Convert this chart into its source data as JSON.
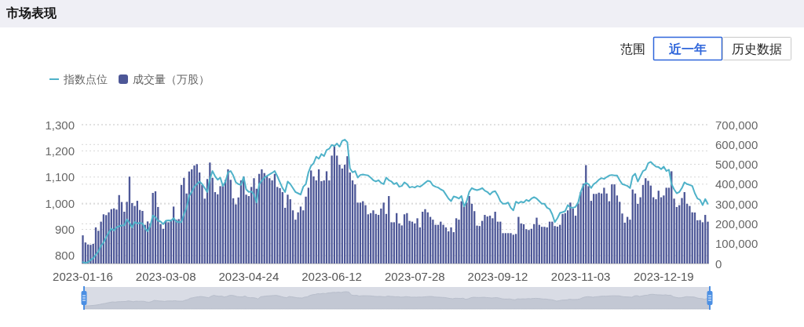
{
  "chart_data": {
    "type": "bar",
    "title": "市场表现",
    "annotations": [
      "范围",
      "近一年",
      "历史数据"
    ],
    "categories": [
      "2023-01-16",
      null,
      null,
      null,
      null,
      null,
      null,
      null,
      null,
      null,
      null,
      null,
      null,
      null,
      null,
      null,
      null,
      null,
      null,
      null,
      null,
      null,
      null,
      null,
      null,
      null,
      null,
      null,
      null,
      null,
      null,
      null,
      "2023-03-08",
      null,
      null,
      null,
      null,
      null,
      null,
      null,
      null,
      null,
      null,
      null,
      null,
      null,
      null,
      null,
      null,
      null,
      null,
      null,
      null,
      null,
      null,
      null,
      null,
      null,
      null,
      null,
      null,
      null,
      null,
      null,
      "2023-04-24",
      null,
      null,
      null,
      null,
      null,
      null,
      null,
      null,
      null,
      null,
      null,
      null,
      null,
      null,
      null,
      null,
      null,
      null,
      null,
      null,
      null,
      null,
      null,
      null,
      null,
      null,
      null,
      null,
      null,
      null,
      null,
      "2023-06-12",
      null,
      null,
      null,
      null,
      null,
      null,
      null,
      null,
      null,
      null,
      null,
      null,
      null,
      null,
      null,
      null,
      null,
      null,
      null,
      null,
      null,
      null,
      null,
      null,
      null,
      null,
      null,
      null,
      null,
      null,
      null,
      "2023-07-28",
      null,
      null,
      null,
      null,
      null,
      null,
      null,
      null,
      null,
      null,
      null,
      null,
      null,
      null,
      null,
      null,
      null,
      null,
      null,
      null,
      null,
      null,
      null,
      null,
      null,
      null,
      null,
      null,
      null,
      null,
      null,
      "2023-09-12",
      null,
      null,
      null,
      null,
      null,
      null,
      null,
      null,
      null,
      null,
      null,
      null,
      null,
      null,
      null,
      null,
      null,
      null,
      null,
      null,
      null,
      null,
      null,
      null,
      null,
      null,
      null,
      null,
      null,
      null,
      null,
      "2023-11-03",
      null,
      null,
      null,
      null,
      null,
      null,
      null,
      null,
      null,
      null,
      null,
      null,
      null,
      null,
      null,
      null,
      null,
      null,
      null,
      null,
      null,
      null,
      null,
      null,
      null,
      null,
      null,
      null,
      null,
      null,
      null,
      "2023-12-19",
      null,
      null,
      null,
      null,
      null,
      null,
      null,
      null,
      null,
      null,
      null,
      null,
      null,
      null,
      null,
      null,
      null
    ],
    "series": [
      {
        "name": "指数点位",
        "type": "line",
        "color": "#4fb2c9",
        "values": [
          775,
          772,
          775,
          783,
          790,
          803,
          816,
          838,
          850,
          870,
          888,
          903,
          896,
          908,
          912,
          915,
          916,
          938,
          926,
          908,
          928,
          923,
          925,
          923,
          903,
          893,
          913,
          953,
          946,
          933,
          930,
          920,
          933,
          935,
          933,
          943,
          930,
          928,
          928,
          958,
          983,
          1028,
          1043,
          1063,
          1073,
          1083,
          1073,
          1058,
          1043,
          1093,
          1123,
          1103,
          1090,
          1098,
          1066,
          1083,
          1118,
          1123,
          1106,
          1080,
          1073,
          1070,
          1100,
          1053,
          1043,
          1045,
          1033,
          1003,
          1073,
          1086,
          1098,
          1104,
          1110,
          1116,
          1123,
          1103,
          1080,
          1058,
          1043,
          1083,
          1073,
          1058,
          1043,
          1038,
          1033,
          1063,
          1073,
          1118,
          1143,
          1153,
          1178,
          1170,
          1188,
          1180,
          1203,
          1208,
          1223,
          1218,
          1228,
          1216,
          1238,
          1243,
          1233,
          1133,
          1118,
          1123,
          1098,
          1108,
          1110,
          1108,
          1106,
          1098,
          1088,
          1083,
          1088,
          1078,
          1073,
          1098,
          1088,
          1083,
          1073,
          1078,
          1063,
          1066,
          1080,
          1073,
          1060,
          1063,
          1060,
          1066,
          1063,
          1070,
          1078,
          1086,
          1083,
          1068,
          1063,
          1060,
          1053,
          1048,
          1033,
          1018,
          1008,
          1026,
          1023,
          1018,
          1028,
          988,
          1008,
          1043,
          1058,
          1053,
          1050,
          1053,
          1058,
          1048,
          1043,
          1033,
          1043,
          1046,
          1030,
          1008,
          998,
          998,
          1003,
          983,
          973,
          1006,
          1000,
          1006,
          1003,
          1013,
          1008,
          1018,
          1023,
          1018,
          1008,
          998,
          998,
          983,
          978,
          958,
          928,
          943,
          963,
          966,
          970,
          993,
          983,
          983,
          986,
          1003,
          1043,
          1068,
          1078,
          1073,
          1058,
          1073,
          1080,
          1090,
          1096,
          1093,
          1100,
          1106,
          1108,
          1106,
          1106,
          1088,
          1073,
          1070,
          1066,
          1058,
          1103,
          1113,
          1083,
          1103,
          1123,
          1128,
          1153,
          1158,
          1148,
          1140,
          1138,
          1130,
          1140,
          1123,
          1128,
          1073,
          1053,
          1038,
          1043,
          1058,
          1080,
          1073,
          1070,
          1066,
          1038,
          1018,
          1013,
          993,
          1016,
          998
        ]
      },
      {
        "name": "成交量（万股）",
        "axis": "y2",
        "color": "#4d5797",
        "values": [
          142000,
          106000,
          96000,
          94000,
          99000,
          182000,
          165000,
          211000,
          248000,
          244000,
          258000,
          274000,
          278000,
          272000,
          345000,
          310000,
          261000,
          311000,
          438000,
          305000,
          290000,
          316000,
          270000,
          265000,
          195000,
          212000,
          202000,
          356000,
          364000,
          285000,
          198000,
          175000,
          215000,
          208000,
          221000,
          287000,
          221000,
          224000,
          396000,
          432000,
          353000,
          464000,
          475000,
          494000,
          501000,
          459000,
          396000,
          327000,
          426000,
          509000,
          432000,
          360000,
          349000,
          390000,
          396000,
          422000,
          475000,
          422000,
          329000,
          298000,
          333000,
          419000,
          439000,
          347000,
          340000,
          386000,
          430000,
          377000,
          452000,
          475000,
          456000,
          439000,
          430000,
          419000,
          452000,
          386000,
          380000,
          360000,
          281000,
          347000,
          324000,
          268000,
          221000,
          258000,
          287000,
          268000,
          337000,
          382000,
          469000,
          439000,
          419000,
          475000,
          415000,
          419000,
          465000,
          419000,
          544000,
          591000,
          544000,
          498000,
          479000,
          498000,
          541000,
          459000,
          419000,
          399000,
          307000,
          307000,
          314000,
          294000,
          248000,
          254000,
          268000,
          250000,
          245000,
          277000,
          307000,
          250000,
          340000,
          208000,
          208000,
          254000,
          202000,
          192000,
          248000,
          254000,
          215000,
          211000,
          202000,
          228000,
          182000,
          261000,
          274000,
          258000,
          235000,
          221000,
          195000,
          195000,
          211000,
          195000,
          182000,
          162000,
          182000,
          158000,
          228000,
          221000,
          314000,
          287000,
          307000,
          340000,
          301000,
          264000,
          191000,
          189000,
          215000,
          245000,
          237000,
          241000,
          228000,
          261000,
          211000,
          211000,
          153000,
          153000,
          153000,
          153000,
          145000,
          149000,
          235000,
          202000,
          198000,
          173000,
          169000,
          175000,
          198000,
          231000,
          195000,
          185000,
          185000,
          182000,
          211000,
          211000,
          189000,
          186000,
          195000,
          250000,
          254000,
          268000,
          307000,
          277000,
          241000,
          303000,
          360000,
          403000,
          496000,
          390000,
          316000,
          351000,
          351000,
          357000,
          353000,
          382000,
          353000,
          314000,
          399000,
          399000,
          343000,
          311000,
          252000,
          206000,
          235000,
          221000,
          373000,
          353000,
          301000,
          334000,
          396000,
          430000,
          417000,
          393000,
          334000,
          324000,
          367000,
          334000,
          343000,
          382000,
          382000,
          465000,
          327000,
          285000,
          294000,
          330000,
          360000,
          301000,
          290000,
          258000,
          257000,
          218000,
          219000,
          208000,
          245000,
          211000
        ]
      }
    ],
    "ylim": [
      770,
      1300
    ],
    "yticks": [
      800,
      900,
      {
        "value": 1000,
        "label": "1,000"
      },
      {
        "value": 1100,
        "label": "1,100"
      },
      {
        "value": 1200,
        "label": "1,200"
      },
      {
        "value": 1300,
        "label": "1,300"
      }
    ],
    "y2lim": [
      0,
      700000
    ],
    "y2ticks": [
      0,
      {
        "value": 100000,
        "label": "100,000"
      },
      {
        "value": 200000,
        "label": "200,000"
      },
      {
        "value": 300000,
        "label": "300,000"
      },
      {
        "value": 400000,
        "label": "400,000"
      },
      {
        "value": 500000,
        "label": "500,000"
      },
      {
        "value": 600000,
        "label": "600,000"
      },
      {
        "value": 700000,
        "label": "700,000"
      }
    ],
    "grid": "y",
    "legend": "top left"
  }
}
